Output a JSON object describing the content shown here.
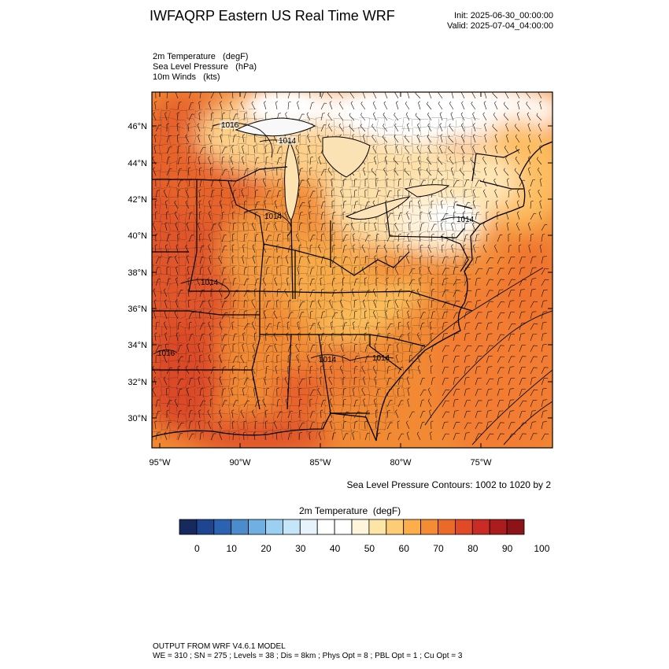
{
  "header": {
    "title": "IWFAQRP Eastern US Real Time WRF",
    "init": "Init: 2025-06-30_00:00:00",
    "valid": "Valid: 2025-07-04_04:00:00"
  },
  "fields": {
    "temp": "2m Temperature   (degF)",
    "slp": "Sea Level Pressure   (hPa)",
    "wind": "10m Winds   (kts)"
  },
  "axes": {
    "lat_labels": [
      "46°N",
      "44°N",
      "42°N",
      "40°N",
      "38°N",
      "36°N",
      "34°N",
      "32°N",
      "30°N"
    ],
    "lon_labels": [
      "95°W",
      "90°W",
      "85°W",
      "80°W",
      "75°W"
    ]
  },
  "contour_labels": [
    "1016",
    "1014",
    "1014",
    "1014",
    "1014",
    "1014",
    "1016",
    "1014"
  ],
  "contour_note": "Sea Level Pressure Contours: 1002 to 1020 by 2",
  "colorbar": {
    "title": "2m Temperature  (degF)",
    "tick_labels": [
      "0",
      "10",
      "20",
      "30",
      "40",
      "50",
      "60",
      "70",
      "80",
      "90",
      "100"
    ],
    "colors": [
      "#162a5e",
      "#1f4590",
      "#2b63b2",
      "#4a8ccc",
      "#6fb0e3",
      "#9bd0f3",
      "#c5e5f8",
      "#e6f3fb",
      "#ffffff",
      "#ffffff",
      "#fff5dc",
      "#fde6a5",
      "#fdcd76",
      "#fbae4a",
      "#f48c33",
      "#ec6a28",
      "#e04a26",
      "#c92c24",
      "#ab1c1e",
      "#8c1418"
    ]
  },
  "footer": {
    "line1": "OUTPUT FROM WRF V4.6.1 MODEL",
    "line2": "WE = 310 ; SN = 275 ; Levels = 38 ; Dis = 8km ; Phys Opt = 8 ; PBL Opt = 1 ; Cu Opt = 3"
  }
}
